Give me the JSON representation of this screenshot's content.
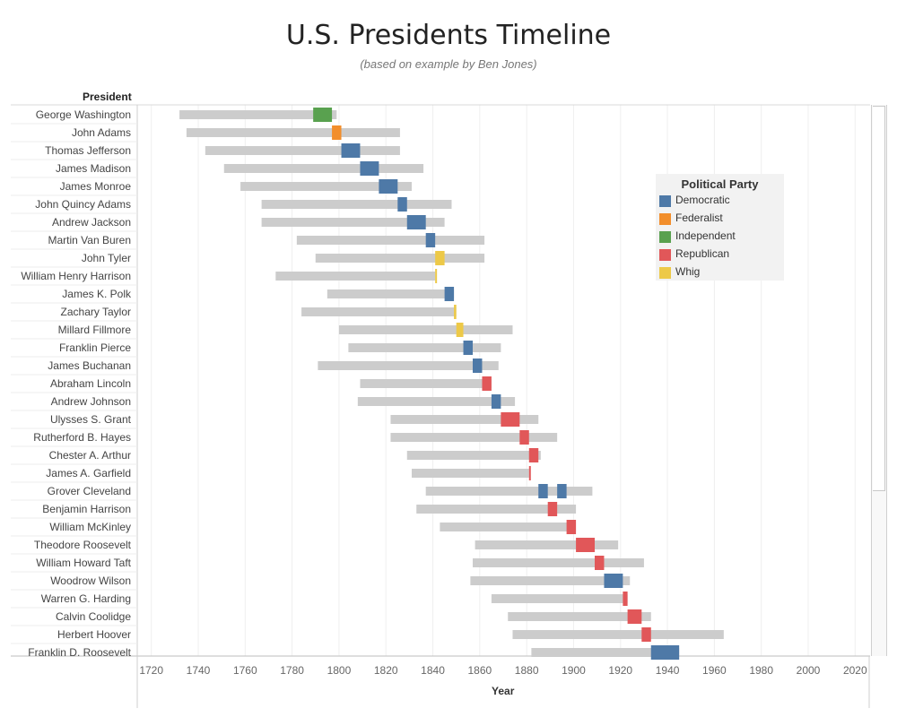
{
  "title": "U.S. Presidents Timeline",
  "subtitle": "(based on example by Ben Jones)",
  "row_header": "President",
  "legend": {
    "title": "Political Party",
    "items": [
      {
        "label": "Democratic",
        "color": "#4e79a7"
      },
      {
        "label": "Federalist",
        "color": "#f28e2b"
      },
      {
        "label": "Independent",
        "color": "#59a14f"
      },
      {
        "label": "Republican",
        "color": "#e15759"
      },
      {
        "label": "Whig",
        "color": "#edc948"
      }
    ]
  },
  "chart_data": {
    "type": "bar",
    "title": "U.S. Presidents Timeline",
    "xlabel": "Year",
    "ylabel": "President",
    "xlim": [
      1714,
      2026
    ],
    "xticks": [
      1720,
      1740,
      1760,
      1780,
      1800,
      1820,
      1840,
      1860,
      1880,
      1900,
      1920,
      1940,
      1960,
      1980,
      2000,
      2020
    ],
    "grid": true,
    "legend_position": "right",
    "lifespan_color": "#cccccc",
    "rows": [
      {
        "name": "George Washington",
        "life": [
          1732,
          1799
        ],
        "terms": [
          [
            1789,
            1797
          ]
        ],
        "party": "Independent"
      },
      {
        "name": "John Adams",
        "life": [
          1735,
          1826
        ],
        "terms": [
          [
            1797,
            1801
          ]
        ],
        "party": "Federalist"
      },
      {
        "name": "Thomas Jefferson",
        "life": [
          1743,
          1826
        ],
        "terms": [
          [
            1801,
            1809
          ]
        ],
        "party": "Democratic"
      },
      {
        "name": "James Madison",
        "life": [
          1751,
          1836
        ],
        "terms": [
          [
            1809,
            1817
          ]
        ],
        "party": "Democratic"
      },
      {
        "name": "James Monroe",
        "life": [
          1758,
          1831
        ],
        "terms": [
          [
            1817,
            1825
          ]
        ],
        "party": "Democratic"
      },
      {
        "name": "John Quincy Adams",
        "life": [
          1767,
          1848
        ],
        "terms": [
          [
            1825,
            1829
          ]
        ],
        "party": "Democratic"
      },
      {
        "name": "Andrew Jackson",
        "life": [
          1767,
          1845
        ],
        "terms": [
          [
            1829,
            1837
          ]
        ],
        "party": "Democratic"
      },
      {
        "name": "Martin Van Buren",
        "life": [
          1782,
          1862
        ],
        "terms": [
          [
            1837,
            1841
          ]
        ],
        "party": "Democratic"
      },
      {
        "name": "John Tyler",
        "life": [
          1790,
          1862
        ],
        "terms": [
          [
            1841,
            1845
          ]
        ],
        "party": "Whig"
      },
      {
        "name": "William Henry Harrison",
        "life": [
          1773,
          1841
        ],
        "terms": [
          [
            1841,
            1841.3
          ]
        ],
        "party": "Whig"
      },
      {
        "name": "James K. Polk",
        "life": [
          1795,
          1849
        ],
        "terms": [
          [
            1845,
            1849
          ]
        ],
        "party": "Democratic"
      },
      {
        "name": "Zachary Taylor",
        "life": [
          1784,
          1850
        ],
        "terms": [
          [
            1849,
            1850
          ]
        ],
        "party": "Whig"
      },
      {
        "name": "Millard Fillmore",
        "life": [
          1800,
          1874
        ],
        "terms": [
          [
            1850,
            1853
          ]
        ],
        "party": "Whig"
      },
      {
        "name": "Franklin Pierce",
        "life": [
          1804,
          1869
        ],
        "terms": [
          [
            1853,
            1857
          ]
        ],
        "party": "Democratic"
      },
      {
        "name": "James Buchanan",
        "life": [
          1791,
          1868
        ],
        "terms": [
          [
            1857,
            1861
          ]
        ],
        "party": "Democratic"
      },
      {
        "name": "Abraham Lincoln",
        "life": [
          1809,
          1865
        ],
        "terms": [
          [
            1861,
            1865
          ]
        ],
        "party": "Republican"
      },
      {
        "name": "Andrew Johnson",
        "life": [
          1808,
          1875
        ],
        "terms": [
          [
            1865,
            1869
          ]
        ],
        "party": "Democratic"
      },
      {
        "name": "Ulysses S. Grant",
        "life": [
          1822,
          1885
        ],
        "terms": [
          [
            1869,
            1877
          ]
        ],
        "party": "Republican"
      },
      {
        "name": "Rutherford B. Hayes",
        "life": [
          1822,
          1893
        ],
        "terms": [
          [
            1877,
            1881
          ]
        ],
        "party": "Republican"
      },
      {
        "name": "Chester A. Arthur",
        "life": [
          1829,
          1886
        ],
        "terms": [
          [
            1881,
            1885
          ]
        ],
        "party": "Republican"
      },
      {
        "name": "James A. Garfield",
        "life": [
          1831,
          1881
        ],
        "terms": [
          [
            1881,
            1881.5
          ]
        ],
        "party": "Republican"
      },
      {
        "name": "Grover Cleveland",
        "life": [
          1837,
          1908
        ],
        "terms": [
          [
            1885,
            1889
          ],
          [
            1893,
            1897
          ]
        ],
        "party": "Democratic"
      },
      {
        "name": "Benjamin Harrison",
        "life": [
          1833,
          1901
        ],
        "terms": [
          [
            1889,
            1893
          ]
        ],
        "party": "Republican"
      },
      {
        "name": "William McKinley",
        "life": [
          1843,
          1901
        ],
        "terms": [
          [
            1897,
            1901
          ]
        ],
        "party": "Republican"
      },
      {
        "name": "Theodore Roosevelt",
        "life": [
          1858,
          1919
        ],
        "terms": [
          [
            1901,
            1909
          ]
        ],
        "party": "Republican"
      },
      {
        "name": "William Howard Taft",
        "life": [
          1857,
          1930
        ],
        "terms": [
          [
            1909,
            1913
          ]
        ],
        "party": "Republican"
      },
      {
        "name": "Woodrow Wilson",
        "life": [
          1856,
          1924
        ],
        "terms": [
          [
            1913,
            1921
          ]
        ],
        "party": "Democratic"
      },
      {
        "name": "Warren G. Harding",
        "life": [
          1865,
          1923
        ],
        "terms": [
          [
            1921,
            1923
          ]
        ],
        "party": "Republican"
      },
      {
        "name": "Calvin Coolidge",
        "life": [
          1872,
          1933
        ],
        "terms": [
          [
            1923,
            1929
          ]
        ],
        "party": "Republican"
      },
      {
        "name": "Herbert Hoover",
        "life": [
          1874,
          1964
        ],
        "terms": [
          [
            1929,
            1933
          ]
        ],
        "party": "Republican"
      },
      {
        "name": "Franklin D. Roosevelt",
        "life": [
          1882,
          1945
        ],
        "terms": [
          [
            1933,
            1945
          ]
        ],
        "party": "Democratic"
      }
    ]
  }
}
